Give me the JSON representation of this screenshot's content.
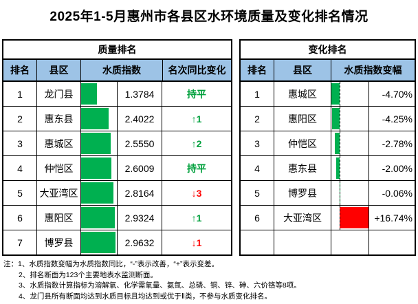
{
  "title": "2025年1-5月惠州市各县区水环境质量及变化排名情况",
  "colors": {
    "header_bg": "#9DC3E6",
    "bar_green": "#00B050",
    "bar_red": "#FF0000",
    "text_green": "#00A03C",
    "text_red": "#FF0000",
    "border": "#000000"
  },
  "quality_table": {
    "title": "质量排名",
    "columns": [
      "排名",
      "县区",
      "水质指数",
      "名次同比变化"
    ],
    "bar_scale_max": 3.0866,
    "rows": [
      {
        "rank": "1",
        "district": "龙门县",
        "index": "1.3784",
        "index_value": 1.3784,
        "change": "持平",
        "trend": "flat"
      },
      {
        "rank": "2",
        "district": "惠东县",
        "index": "2.4022",
        "index_value": 2.4022,
        "change": "↑1",
        "trend": "up"
      },
      {
        "rank": "3",
        "district": "惠城区",
        "index": "2.5550",
        "index_value": 2.555,
        "change": "↑2",
        "trend": "up"
      },
      {
        "rank": "4",
        "district": "仲恺区",
        "index": "2.6009",
        "index_value": 2.6009,
        "change": "持平",
        "trend": "flat"
      },
      {
        "rank": "5",
        "district": "大亚湾区",
        "index": "2.8164",
        "index_value": 2.8164,
        "change": "↓3",
        "trend": "down"
      },
      {
        "rank": "6",
        "district": "惠阳区",
        "index": "2.9324",
        "index_value": 2.9324,
        "change": "↑1",
        "trend": "up"
      },
      {
        "rank": "7",
        "district": "博罗县",
        "index": "2.9632",
        "index_value": 2.9632,
        "change": "↓1",
        "trend": "down"
      }
    ]
  },
  "change_table": {
    "title": "变化排名",
    "columns": [
      "排名",
      "县区",
      "水质指数变幅"
    ],
    "axis": {
      "min": -4.7,
      "max": 16.74
    },
    "rows": [
      {
        "rank": "1",
        "district": "惠城区",
        "delta": "-4.70%",
        "delta_value": -4.7
      },
      {
        "rank": "2",
        "district": "惠阳区",
        "delta": "-4.25%",
        "delta_value": -4.25
      },
      {
        "rank": "3",
        "district": "仲恺区",
        "delta": "-2.78%",
        "delta_value": -2.78
      },
      {
        "rank": "4",
        "district": "惠东县",
        "delta": "-2.00%",
        "delta_value": -2.0
      },
      {
        "rank": "5",
        "district": "博罗县",
        "delta": "-0.06%",
        "delta_value": -0.06
      },
      {
        "rank": "6",
        "district": "大亚湾区",
        "delta": "+16.74%",
        "delta_value": 16.74
      }
    ],
    "has_trailing_empty_row": true
  },
  "notes": {
    "label": "注：",
    "items": [
      "1、水质指数变幅为水质指数同比，“-”表示改善，“+”表示变差。",
      "2、排名断面为123个主要地表水监测断面。",
      "3、水质指数计算指标为溶解氧、化学需氧量、氨氮、总磷、铜、锌、砷、六价铬等8项。",
      "4、龙门县所有断面均达到水质目标且均达到或优于Ⅱ类，不参与水质变化排名。"
    ]
  }
}
